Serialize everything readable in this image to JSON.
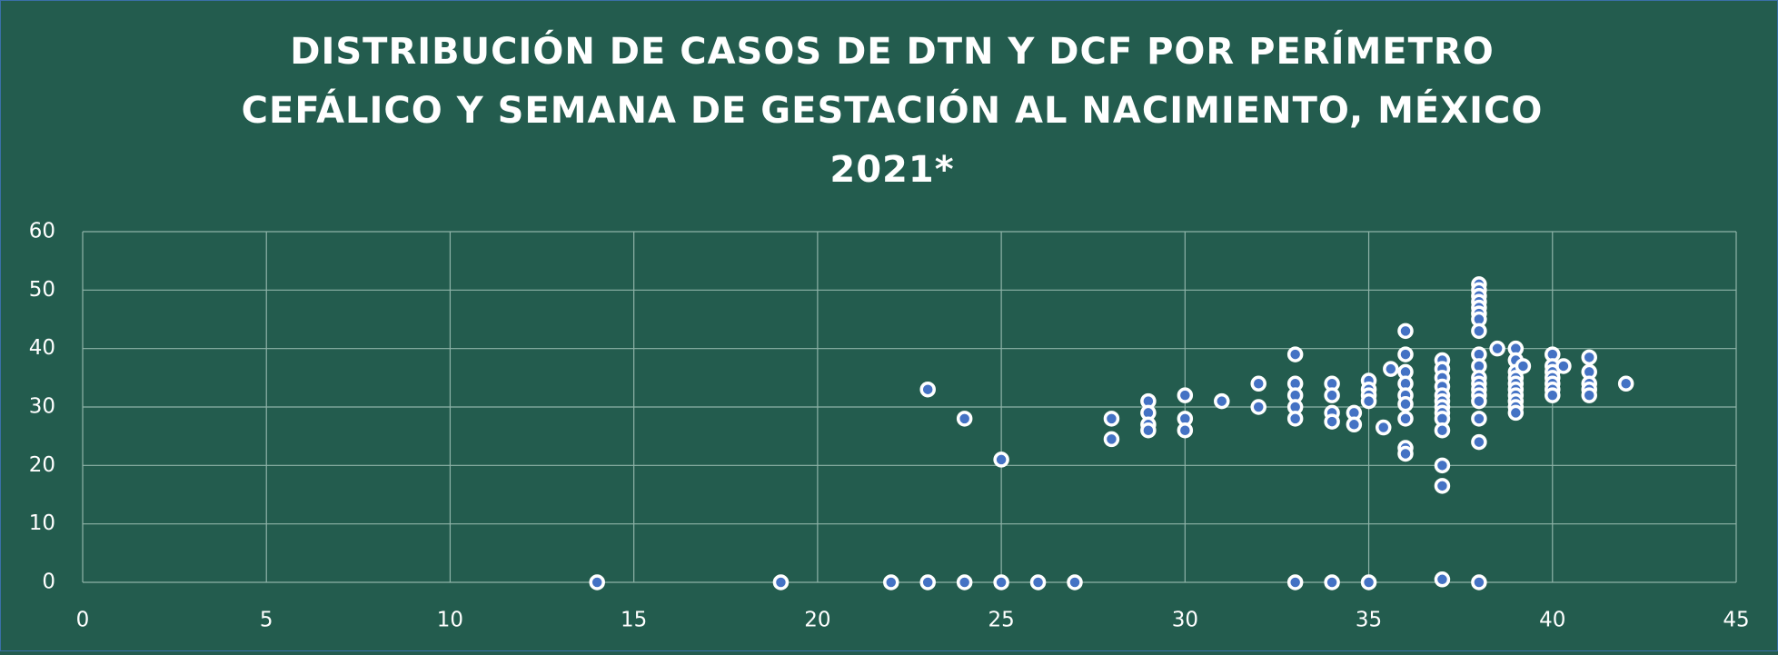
{
  "chart_data": {
    "type": "scatter",
    "title": [
      "DISTRIBUCIÓN DE CASOS DE DTN Y DCF POR PERÍMETRO",
      "CEFÁLICO Y SEMANA DE GESTACIÓN AL NACIMIENTO, MÉXICO",
      "2021*"
    ],
    "color": "#4472c4",
    "x": [
      14,
      19,
      22,
      23,
      24,
      25,
      26,
      27,
      33,
      34,
      35,
      37,
      38,
      23,
      24,
      25,
      28,
      28,
      29,
      29,
      29,
      29,
      30,
      30,
      30,
      31,
      32,
      32,
      33,
      33,
      33,
      33,
      33,
      34,
      34,
      34,
      34,
      34.6,
      34.6,
      35,
      35,
      35,
      35,
      35.4,
      35.6,
      36,
      36,
      36,
      36,
      36,
      36,
      36,
      36,
      36,
      37,
      37,
      37,
      37,
      37,
      37,
      37,
      37,
      37,
      37,
      37,
      37,
      38,
      38,
      38,
      38,
      38,
      38,
      38,
      38,
      38,
      38,
      38,
      38,
      38,
      38,
      38,
      38,
      38,
      38.5,
      39,
      39,
      39,
      39,
      39,
      39,
      39,
      39,
      39,
      39,
      39.2,
      40,
      40,
      40,
      40,
      40,
      40,
      40,
      40.3,
      41,
      41,
      41,
      41,
      41,
      42
    ],
    "values": [
      0,
      0,
      0,
      0,
      0,
      0,
      0,
      0,
      0,
      0,
      0,
      0.5,
      0,
      33,
      28,
      21,
      28,
      24.5,
      31,
      29,
      27,
      26,
      32,
      28,
      26,
      31,
      34,
      30,
      39,
      34,
      32,
      30,
      28,
      34,
      32,
      29,
      27.5,
      29,
      27,
      34.5,
      33,
      32,
      31,
      26.5,
      36.5,
      43,
      39,
      36,
      34,
      32,
      30.5,
      28,
      23,
      22,
      38,
      36.5,
      35,
      33.5,
      32,
      31,
      30,
      29,
      28,
      26,
      20,
      16.5,
      51,
      50,
      49,
      48,
      47,
      46,
      45,
      43,
      39,
      37,
      35,
      34,
      33,
      32,
      31,
      28,
      24,
      40,
      40,
      38,
      36,
      35,
      34,
      33,
      32,
      31,
      30,
      29,
      37,
      39,
      37,
      36,
      35,
      34,
      33,
      32,
      37,
      38.5,
      36,
      34,
      33,
      32,
      34
    ],
    "xlim": [
      0,
      45
    ],
    "xticks": [
      0,
      5,
      10,
      15,
      20,
      25,
      30,
      35,
      40,
      45
    ],
    "ylim": [
      0,
      60
    ],
    "yticks": [
      0,
      10,
      20,
      30,
      40,
      50,
      60
    ],
    "grid": true
  }
}
